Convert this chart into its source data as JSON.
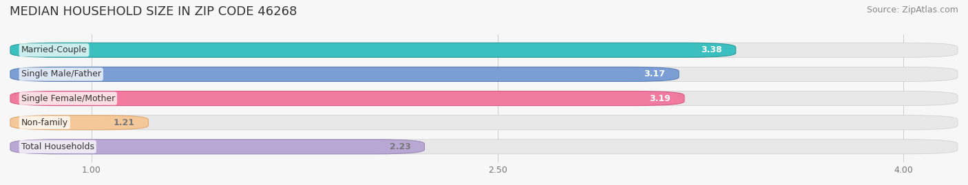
{
  "title": "MEDIAN HOUSEHOLD SIZE IN ZIP CODE 46268",
  "source": "Source: ZipAtlas.com",
  "categories": [
    "Married-Couple",
    "Single Male/Father",
    "Single Female/Mother",
    "Non-family",
    "Total Households"
  ],
  "values": [
    3.38,
    3.17,
    3.19,
    1.21,
    2.23
  ],
  "bar_colors": [
    "#3bbfbf",
    "#7b9fd4",
    "#f07aa0",
    "#f5c89a",
    "#b9a8d4"
  ],
  "bar_edge_colors": [
    "#2a9a9a",
    "#5a80b8",
    "#d85a85",
    "#e0a870",
    "#9a88b8"
  ],
  "value_text_colors": [
    "white",
    "white",
    "white",
    "#777777",
    "#777777"
  ],
  "xlim": [
    0.7,
    4.2
  ],
  "xticks": [
    1.0,
    2.5,
    4.0
  ],
  "background_color": "#f7f7f7",
  "bar_background_color": "#e8e8e8",
  "title_fontsize": 13,
  "source_fontsize": 9,
  "label_fontsize": 9,
  "value_fontsize": 9,
  "bar_height": 0.6
}
